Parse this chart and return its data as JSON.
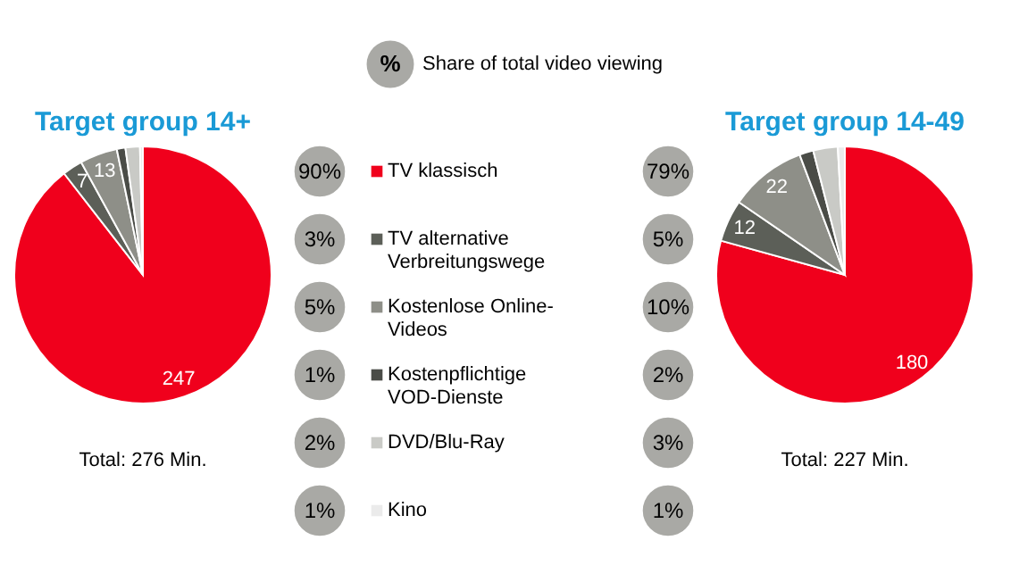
{
  "chart_data": [
    {
      "type": "pie",
      "title": "Target group 14+",
      "categories": [
        "TV klassisch",
        "TV alternative Verbreitungswege",
        "Kostenlose Online-Videos",
        "Kostenpflichtige VOD-Dienste",
        "DVD/Blu-Ray",
        "Kino"
      ],
      "values": [
        247,
        7,
        13,
        3,
        5,
        1
      ],
      "value_labels": [
        "247",
        "7",
        "13",
        null,
        null,
        null
      ],
      "colors": [
        "#f0001c",
        "#5c5f58",
        "#8e8f88",
        "#4a4c47",
        "#c9cac6",
        "#ebebeb"
      ],
      "annotations": [
        "Total: 276 Min."
      ],
      "legend": "right"
    },
    {
      "type": "other",
      "title": "Share of total video viewing",
      "annotations": [
        "%",
        "90%",
        "3%",
        "5%",
        "1%",
        "2%",
        "1%",
        "79%",
        "5%",
        "10%",
        "2%",
        "3%",
        "1%"
      ]
    },
    {
      "type": "pie",
      "title": "Target group 14-49",
      "categories": [
        null,
        null,
        null,
        null,
        null,
        null
      ],
      "values": [
        180,
        12,
        22,
        4,
        7,
        2
      ],
      "value_labels": [
        "180",
        "12",
        "22",
        null,
        null,
        null
      ],
      "colors": [
        "#f0001c",
        "#5c5f58",
        "#8e8f88",
        "#4a4c47",
        "#c9cac6",
        "#ebebeb"
      ],
      "annotations": [
        "Total: 227 Min."
      ],
      "legend": false
    }
  ]
}
